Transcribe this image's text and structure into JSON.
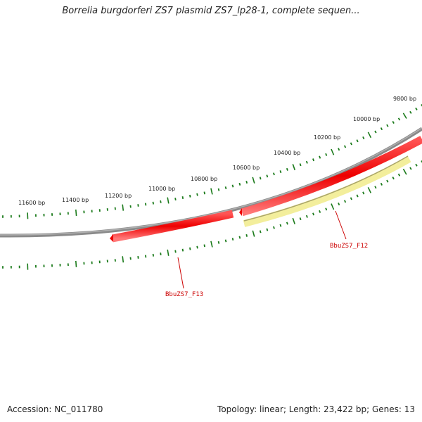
{
  "title": "Borrelia burgdorferi ZS7 plasmid ZS7_lp28-1, complete sequen...",
  "footer": {
    "accession": "Accession: NC_011780",
    "summary": "Topology: linear; Length: 23,422 bp; Genes: 13"
  },
  "colors": {
    "backbone": "#7f7f7f",
    "gene_forward": "#ee0000",
    "gene_reverse": "#f3ee9c",
    "ticks": "#1a7a1a",
    "gene_label": "#cc0000"
  },
  "tick_labels": [
    "11600 bp",
    "11400 bp",
    "11200 bp",
    "11000 bp",
    "10800 bp",
    "10600 bp",
    "10400 bp",
    "10200 bp",
    "10000 bp",
    "9800 bp"
  ],
  "genes": [
    {
      "name": "BbuZS7_F13",
      "strand": "forward"
    },
    {
      "name": "BbuZS7_F12",
      "strand": "reverse"
    }
  ]
}
